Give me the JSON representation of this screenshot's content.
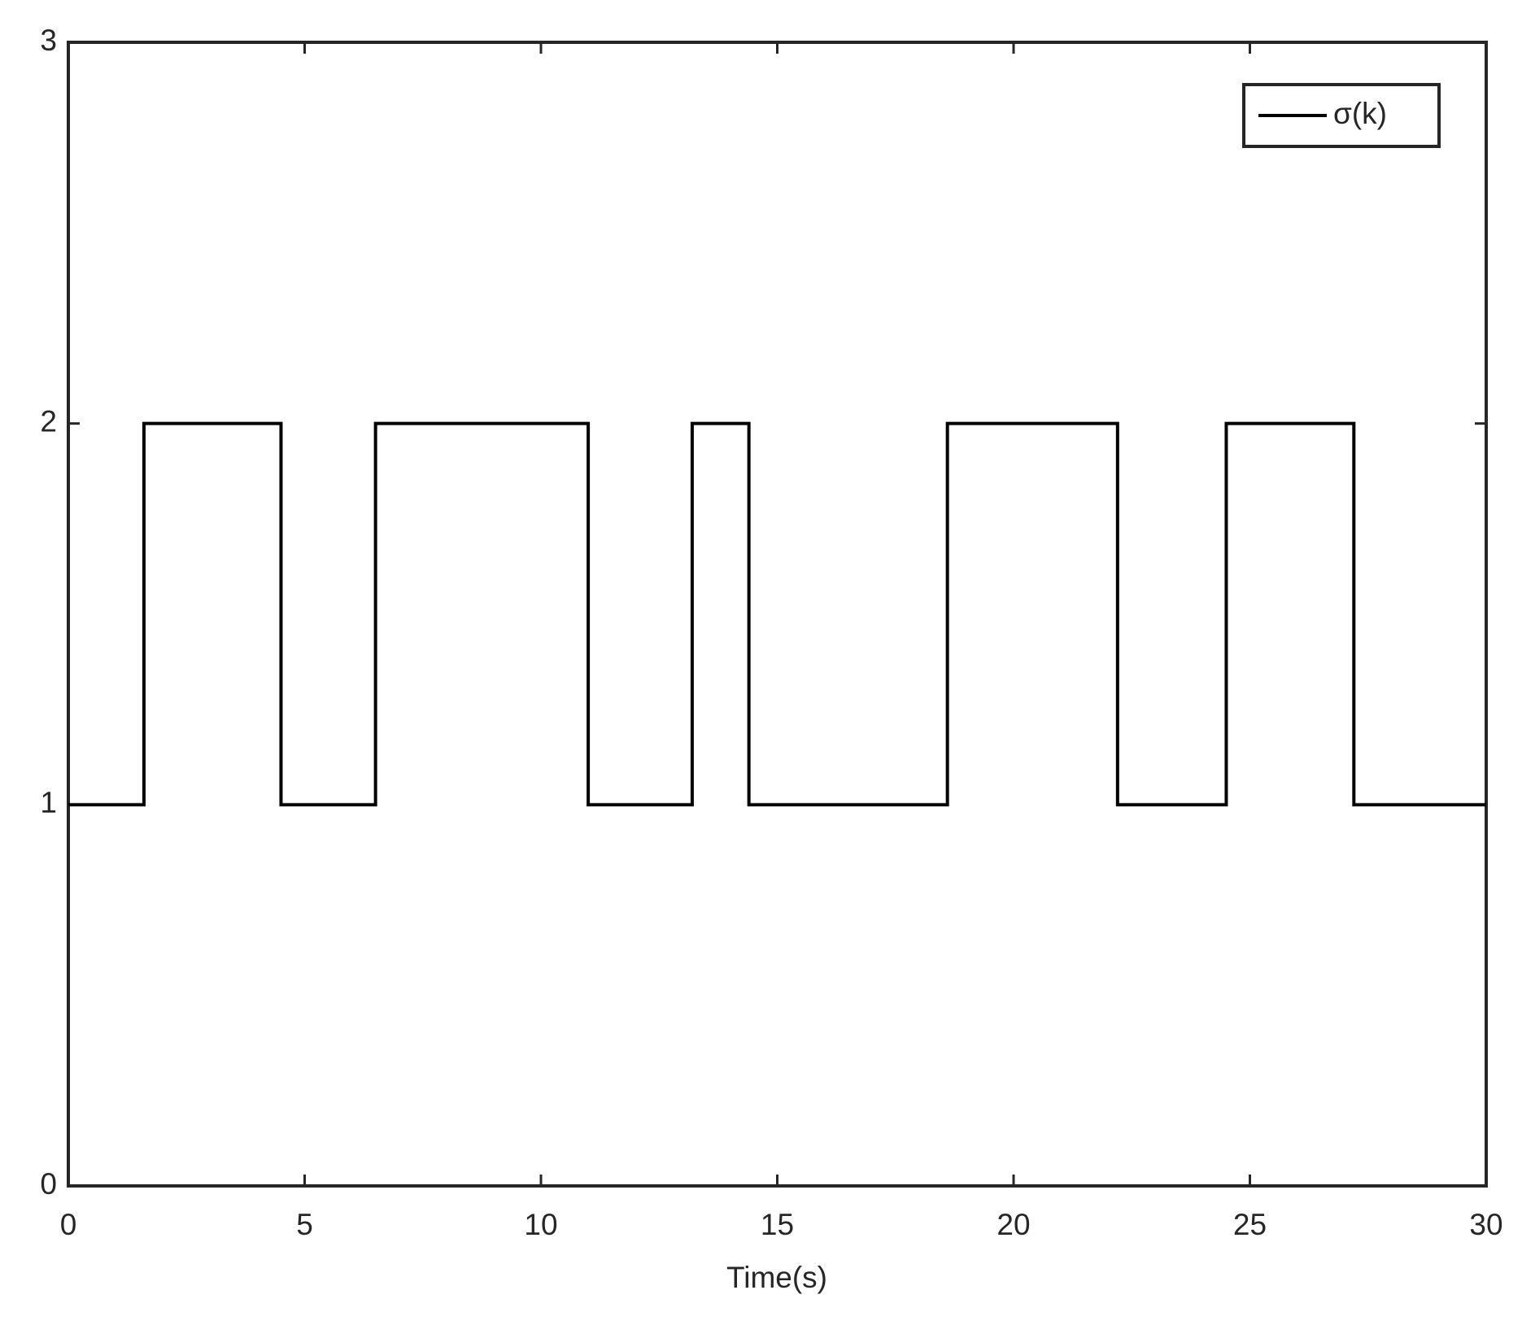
{
  "chart_data": {
    "type": "line",
    "xlabel": "Time(s)",
    "x": [
      0,
      1.6,
      1.6,
      4.5,
      4.5,
      6.5,
      6.5,
      11,
      11,
      13.2,
      13.2,
      14.4,
      14.4,
      18.6,
      18.6,
      22.2,
      22.2,
      24.5,
      24.5,
      27.2,
      27.2,
      30
    ],
    "series": [
      {
        "name": "σ(k)",
        "color": "#000000",
        "values": [
          1,
          1,
          2,
          2,
          1,
          1,
          2,
          2,
          1,
          1,
          2,
          2,
          1,
          1,
          2,
          2,
          1,
          1,
          2,
          2,
          1,
          1
        ]
      }
    ],
    "xlim": [
      0,
      30
    ],
    "xticks": [
      0,
      5,
      10,
      15,
      20,
      25,
      30
    ],
    "ylim": [
      0,
      3
    ],
    "yticks": [
      0,
      1,
      2,
      3
    ],
    "legend": "northeast",
    "grid": false
  }
}
